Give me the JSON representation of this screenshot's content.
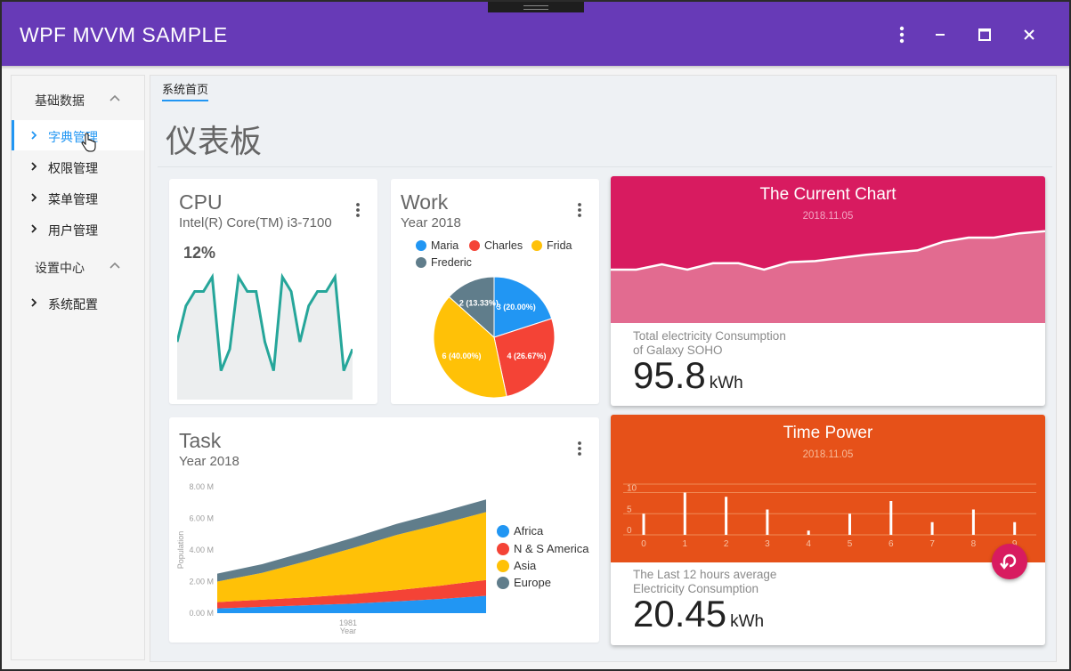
{
  "window": {
    "title": "WPF MVVM SAMPLE"
  },
  "titlebar_buttons": {
    "more_icon": "more-vert-icon",
    "minimize_icon": "minimize-icon",
    "maximize_icon": "maximize-icon",
    "close_icon": "close-icon"
  },
  "sidebar": {
    "groups": [
      {
        "label": "基础数据",
        "expanded": true,
        "items": [
          {
            "label": "字典管理",
            "active": true
          },
          {
            "label": "权限管理",
            "active": false
          },
          {
            "label": "菜单管理",
            "active": false
          },
          {
            "label": "用户管理",
            "active": false
          }
        ]
      },
      {
        "label": "设置中心",
        "expanded": true,
        "items": [
          {
            "label": "系统配置",
            "active": false
          }
        ]
      }
    ]
  },
  "main": {
    "tab": "系统首页",
    "title": "仪表板"
  },
  "cpu": {
    "title": "CPU",
    "subtitle": "Intel(R) Core(TM) i3-7100",
    "value": "12%",
    "color": "#26a69a"
  },
  "work": {
    "title": "Work",
    "subtitle": "Year 2018"
  },
  "task": {
    "title": "Task",
    "subtitle": "Year 2018"
  },
  "current": {
    "title": "The Current Chart",
    "date": "2018.11.05",
    "desc_line1": "Total electricity Consumption",
    "desc_line2": "of Galaxy SOHO",
    "value": "95.8",
    "unit": "kWh",
    "color": "#d81b60"
  },
  "time_power": {
    "title": "Time Power",
    "date": "2018.11.05",
    "desc_line1": "The Last 12 hours average",
    "desc_line2": "Electricity Consumption",
    "value": "20.45",
    "unit": "kWh",
    "color": "#e65119",
    "fab_icon": "refresh-icon"
  },
  "chart_data": [
    {
      "id": "cpu",
      "type": "area",
      "values": [
        8,
        13,
        15,
        15,
        17,
        4,
        7,
        17,
        15,
        15,
        8,
        4,
        17,
        15,
        8,
        13,
        15,
        15,
        17,
        4,
        7
      ],
      "ylim": [
        0,
        20
      ]
    },
    {
      "id": "work",
      "type": "pie",
      "labels": [
        "Maria",
        "Charles",
        "Frida",
        "Frederic"
      ],
      "values": [
        3,
        4,
        6,
        2
      ],
      "slice_labels": [
        "3 (20.00%)",
        "4 (26.67%)",
        "6 (40.00%)",
        "2 (13.33%)"
      ],
      "colors": [
        "#2196f3",
        "#f44336",
        "#ffc107",
        "#607d8b"
      ]
    },
    {
      "id": "task",
      "type": "area",
      "ylabel": "Population",
      "xlabel": "Year",
      "x_ticks": [
        "1981"
      ],
      "y_ticks": [
        "0.00 M",
        "2.00 M",
        "4.00 M",
        "6.00 M",
        "8.00 M"
      ],
      "ylim": [
        0,
        8
      ],
      "x": [
        0,
        1,
        2,
        3,
        4,
        5,
        6
      ],
      "series": [
        {
          "name": "Africa",
          "color": "#2196f3",
          "values": [
            0.3,
            0.4,
            0.5,
            0.6,
            0.75,
            0.9,
            1.1
          ]
        },
        {
          "name": "N & S America",
          "color": "#f44336",
          "values": [
            0.4,
            0.45,
            0.5,
            0.6,
            0.7,
            0.85,
            1.0
          ]
        },
        {
          "name": "Asia",
          "color": "#ffc107",
          "values": [
            1.3,
            1.7,
            2.3,
            2.9,
            3.5,
            3.9,
            4.3
          ]
        },
        {
          "name": "Europe",
          "color": "#607d8b",
          "values": [
            0.5,
            0.55,
            0.6,
            0.65,
            0.7,
            0.75,
            0.8
          ]
        }
      ]
    },
    {
      "id": "current",
      "type": "area",
      "values": [
        5,
        5,
        5.5,
        5,
        5.6,
        5.6,
        5,
        5.7,
        5.8,
        6.1,
        6.4,
        6.6,
        6.8,
        7.6,
        8.0,
        8.0,
        8.4,
        8.6
      ]
    },
    {
      "id": "time_power",
      "type": "bar",
      "x": [
        "0",
        "1",
        "2",
        "3",
        "4",
        "5",
        "6",
        "7",
        "8",
        "9"
      ],
      "values": [
        5,
        10,
        9,
        6,
        1,
        5,
        8,
        3,
        6,
        3
      ],
      "y_ticks": [
        "0",
        "5",
        "10"
      ],
      "ylim": [
        0,
        12
      ]
    }
  ]
}
